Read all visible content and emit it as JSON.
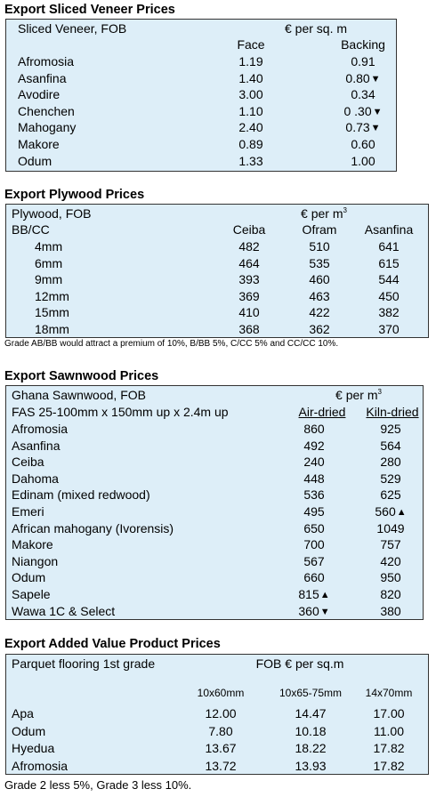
{
  "veneer": {
    "title": "Export Sliced Veneer Prices",
    "header_left": "Sliced Veneer, FOB",
    "header_unit": "€ per sq. m",
    "col_face": "Face",
    "col_backing": "Backing",
    "rows": [
      {
        "name": "Afromosia",
        "face": "1.19",
        "backing": "0.91",
        "trend": ""
      },
      {
        "name": "Asanfina",
        "face": "1.40",
        "backing": "0.80",
        "trend": "down"
      },
      {
        "name": "Avodire",
        "face": "3.00",
        "backing": "0.34",
        "trend": ""
      },
      {
        "name": "Chenchen",
        "face": "1.10",
        "backing": "0 .30",
        "trend": "down"
      },
      {
        "name": "Mahogany",
        "face": "2.40",
        "backing": "0.73",
        "trend": "down"
      },
      {
        "name": "Makore",
        "face": "0.89",
        "backing": "0.60",
        "trend": ""
      },
      {
        "name": "Odum",
        "face": "1.33",
        "backing": "1.00",
        "trend": ""
      }
    ]
  },
  "plywood": {
    "title": "Export Plywood Prices",
    "header_left": "Plywood, FOB",
    "header_unit": "€ per m",
    "header_unit_sup": "3",
    "grade_label": "BB/CC",
    "cols": [
      "Ceiba",
      "Ofram",
      "Asanfina"
    ],
    "rows": [
      {
        "size": "4mm",
        "values": [
          "482",
          "510",
          "641"
        ]
      },
      {
        "size": "6mm",
        "values": [
          "464",
          "535",
          "615"
        ]
      },
      {
        "size": "9mm",
        "values": [
          "393",
          "460",
          "544"
        ]
      },
      {
        "size": "12mm",
        "values": [
          "369",
          "463",
          "450"
        ]
      },
      {
        "size": "15mm",
        "values": [
          "410",
          "422",
          "382"
        ]
      },
      {
        "size": "18mm",
        "values": [
          "368",
          "362",
          "370"
        ]
      }
    ],
    "note": "Grade AB/BB would attract a premium of 10%, B/BB 5%, C/CC 5% and CC/CC 10%."
  },
  "sawnwood": {
    "title": "Export Sawnwood Prices",
    "header_left": "Ghana Sawnwood, FOB",
    "header_unit": "€ per m",
    "header_unit_sup": "3",
    "spec": "FAS 25-100mm x 150mm up x 2.4m up",
    "col_air": "Air-dried",
    "col_kiln": "Kiln-dried",
    "rows": [
      {
        "name": "Afromosia",
        "air": "860",
        "air_trend": "",
        "kiln": "925",
        "kiln_trend": ""
      },
      {
        "name": "Asanfina",
        "air": "492",
        "air_trend": "",
        "kiln": "564",
        "kiln_trend": ""
      },
      {
        "name": "Ceiba",
        "air": "240",
        "air_trend": "",
        "kiln": "280",
        "kiln_trend": ""
      },
      {
        "name": "Dahoma",
        "air": "448",
        "air_trend": "",
        "kiln": "529",
        "kiln_trend": ""
      },
      {
        "name": "Edinam (mixed redwood)",
        "air": "536",
        "air_trend": "",
        "kiln": "625",
        "kiln_trend": ""
      },
      {
        "name": "Emeri",
        "air": "495",
        "air_trend": "",
        "kiln": "560",
        "kiln_trend": "up"
      },
      {
        "name": "African mahogany (Ivorensis)",
        "air": "650",
        "air_trend": "",
        "kiln": "1049",
        "kiln_trend": ""
      },
      {
        "name": "Makore",
        "air": "700",
        "air_trend": "",
        "kiln": "757",
        "kiln_trend": ""
      },
      {
        "name": "Niangon",
        "air": "567",
        "air_trend": "",
        "kiln": "420",
        "kiln_trend": ""
      },
      {
        "name": "Odum",
        "air": "660",
        "air_trend": "",
        "kiln": "950",
        "kiln_trend": ""
      },
      {
        "name": "Sapele",
        "air": "815",
        "air_trend": "up",
        "kiln": "820",
        "kiln_trend": ""
      },
      {
        "name": "Wawa 1C & Select",
        "air": "360",
        "air_trend": "down",
        "kiln": "380",
        "kiln_trend": ""
      }
    ]
  },
  "added": {
    "title": "Export Added Value Product Prices",
    "header_left": "Parquet flooring 1st grade",
    "header_unit": "FOB € per sq.m",
    "cols": [
      "10x60mm",
      "10x65-75mm",
      "14x70mm"
    ],
    "rows": [
      {
        "name": "Apa",
        "values": [
          "12.00",
          "14.47",
          "17.00"
        ]
      },
      {
        "name": "Odum",
        "values": [
          "7.80",
          "10.18",
          "11.00"
        ]
      },
      {
        "name": "Hyedua",
        "values": [
          "13.67",
          "18.22",
          "17.82"
        ]
      },
      {
        "name": "Afromosia",
        "values": [
          "13.72",
          "13.93",
          "17.82"
        ]
      }
    ],
    "note": "Grade 2 less 5%, Grade 3 less 10%."
  },
  "arrows": {
    "up": "▲",
    "down": "▼"
  },
  "colors": {
    "table_bg": "#ddeef8"
  }
}
